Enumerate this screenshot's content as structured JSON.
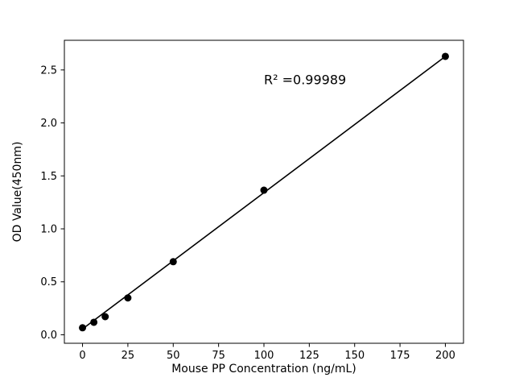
{
  "chart_data": {
    "type": "scatter",
    "title": "",
    "xlabel": "Mouse PP Concentration (ng/mL)",
    "ylabel": "OD Value(450nm)",
    "x": [
      0,
      6.25,
      12.5,
      25,
      50,
      100,
      200
    ],
    "y": [
      0.066,
      0.118,
      0.171,
      0.348,
      0.69,
      1.365,
      2.628
    ],
    "fit_line": {
      "x": [
        0,
        200
      ],
      "y": [
        0.055,
        2.628
      ]
    },
    "annotation": "R² =0.99989",
    "xlim": [
      -10,
      210
    ],
    "ylim": [
      -0.08,
      2.78
    ],
    "xticks": [
      0,
      25,
      50,
      75,
      100,
      125,
      150,
      175,
      200
    ],
    "yticks": [
      0.0,
      0.5,
      1.0,
      1.5,
      2.0,
      2.5
    ],
    "grid": false,
    "legend": "none",
    "marker_color": "#000000",
    "line_color": "#000000",
    "background_color": "#ffffff"
  }
}
